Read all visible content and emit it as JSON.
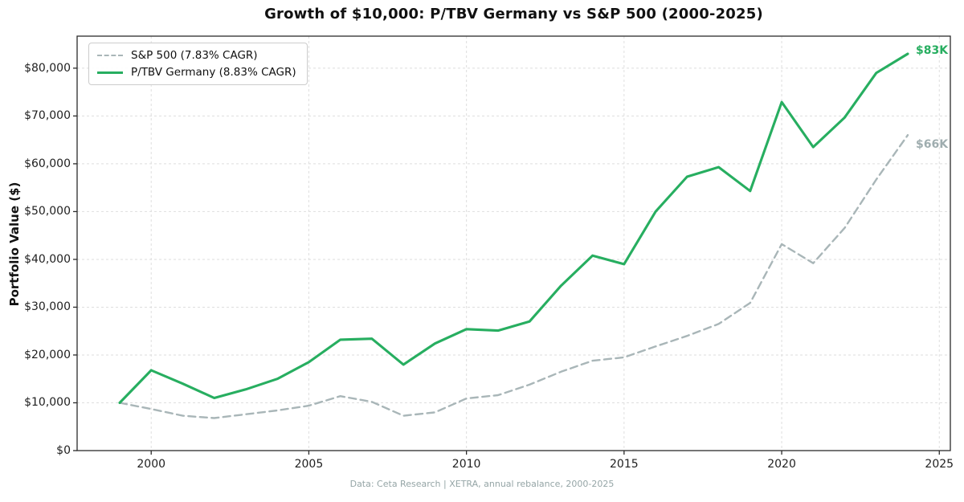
{
  "title": "Growth of $10,000: P/TBV Germany vs S&P 500 (2000-2025)",
  "ylabel": "Portfolio Value ($)",
  "footer": "Data: Ceta Research | XETRA, annual rebalance, 2000-2025",
  "colors": {
    "sp500": "#a9b6b8",
    "ptbv": "#27ae60",
    "sp500_annotation": "#9fadaf",
    "grid": "#dedede",
    "axis": "#2b2b2b",
    "text": "#111111",
    "footer_text": "#95a5a6"
  },
  "annotations": [
    {
      "text": "$66K",
      "series": "sp500",
      "value": 66000
    },
    {
      "text": "$83K",
      "series": "ptbv",
      "value": 83000
    }
  ],
  "chart_data": {
    "type": "line",
    "x": [
      1999,
      2000,
      2001,
      2002,
      2003,
      2004,
      2005,
      2006,
      2007,
      2008,
      2009,
      2010,
      2011,
      2012,
      2013,
      2014,
      2015,
      2016,
      2017,
      2018,
      2019,
      2020,
      2021,
      2022,
      2023,
      2024
    ],
    "series": [
      {
        "name": "S&P 500 (7.83% CAGR)",
        "color": "#a9b6b8",
        "style": "dashed",
        "values": [
          10000,
          8700,
          7300,
          6800,
          7600,
          8400,
          9400,
          11400,
          10200,
          7300,
          8000,
          10900,
          11600,
          13800,
          16500,
          18800,
          19500,
          21800,
          24000,
          26500,
          30900,
          43200,
          39200,
          46600,
          56700,
          66000
        ]
      },
      {
        "name": "P/TBV Germany (8.83% CAGR)",
        "color": "#27ae60",
        "style": "solid",
        "values": [
          10000,
          16800,
          14000,
          11000,
          12800,
          15000,
          18500,
          23200,
          23400,
          18000,
          22400,
          25400,
          25100,
          27000,
          34500,
          40800,
          39000,
          50000,
          57300,
          59300,
          54300,
          72900,
          63500,
          69700,
          79000,
          83000
        ]
      }
    ],
    "xticks": [
      2000,
      2005,
      2010,
      2015,
      2020,
      2025
    ],
    "yticks": [
      0,
      10000,
      20000,
      30000,
      40000,
      50000,
      60000,
      70000,
      80000
    ],
    "ytick_labels": [
      "$0",
      "$10,000",
      "$20,000",
      "$30,000",
      "$40,000",
      "$50,000",
      "$60,000",
      "$70,000",
      "$80,000"
    ],
    "xlim": [
      1997.65,
      2025.35
    ],
    "ylim": [
      0,
      86700
    ],
    "grid": true,
    "legend_position": "upper left"
  }
}
